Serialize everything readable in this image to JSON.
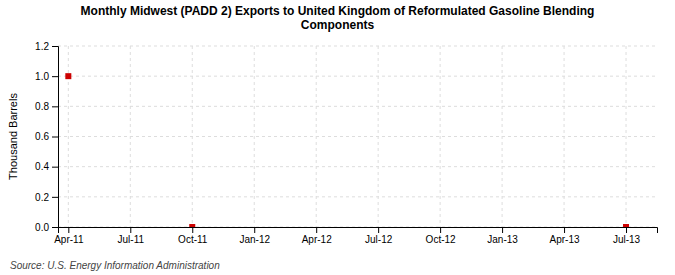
{
  "chart_data": {
    "type": "scatter",
    "title": "Monthly Midwest (PADD 2) Exports to United Kingdom of Reformulated Gasoline Blending\nComponents",
    "y_label": "Thousand Barrels",
    "source": "Source: U.S. Energy Information Administration",
    "x": [
      0,
      6,
      27
    ],
    "values": [
      1.0,
      0.0,
      0.0
    ],
    "color": "#cc0000",
    "marker": "square",
    "xlim": [
      -0.5,
      28.5
    ],
    "xticks": [
      {
        "value": 0,
        "label": "Apr-11"
      },
      {
        "value": 3,
        "label": "Jul-11"
      },
      {
        "value": 6,
        "label": "Oct-11"
      },
      {
        "value": 9,
        "label": "Jan-12"
      },
      {
        "value": 12,
        "label": "Apr-12"
      },
      {
        "value": 15,
        "label": "Jul-12"
      },
      {
        "value": 18,
        "label": "Oct-12"
      },
      {
        "value": 21,
        "label": "Jan-13"
      },
      {
        "value": 24,
        "label": "Apr-13"
      },
      {
        "value": 27,
        "label": "Jul-13"
      }
    ],
    "ylim": [
      0.0,
      1.2
    ],
    "yticks": [
      {
        "value": 0.0,
        "label": "0.0"
      },
      0.2,
      0.4,
      0.6,
      0.8,
      {
        "value": 1.0,
        "label": "1.0"
      },
      1.2
    ],
    "grid": true
  }
}
